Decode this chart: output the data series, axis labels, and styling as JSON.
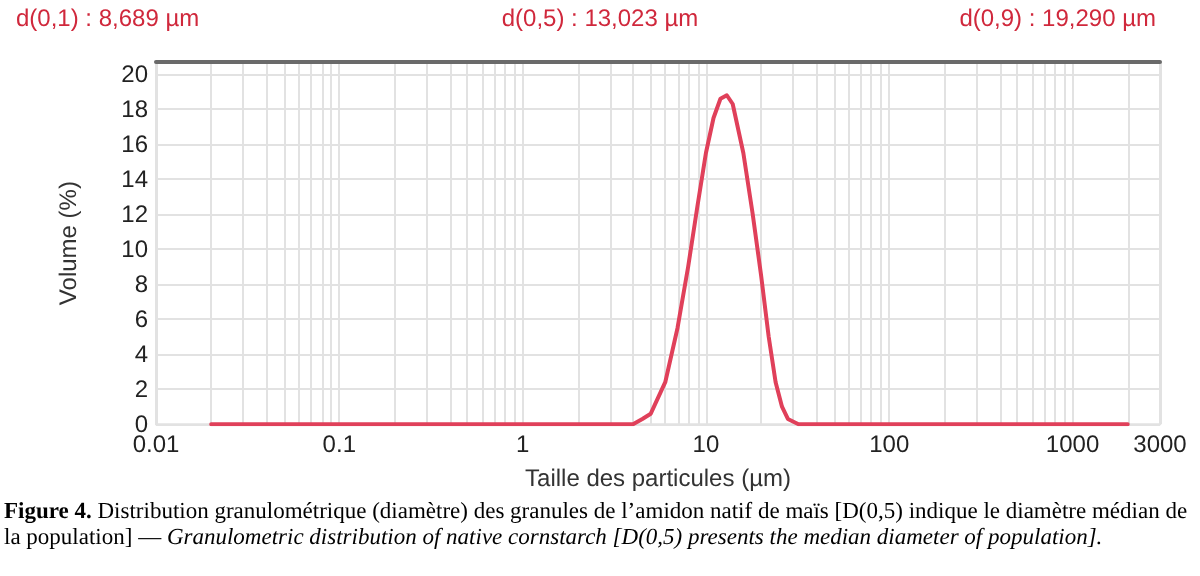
{
  "chart_data": {
    "type": "line",
    "xlabel": "Taille des particules (µm)",
    "ylabel": "Volume (%)",
    "log": "x",
    "xlim": [
      0.01,
      3000
    ],
    "ylim": [
      0,
      20.7
    ],
    "xticks": [
      0.01,
      {
        "value": 0.02,
        "label": null
      },
      {
        "value": 0.03,
        "label": null
      },
      {
        "value": 0.04,
        "label": null
      },
      {
        "value": 0.05,
        "label": null
      },
      {
        "value": 0.06,
        "label": null
      },
      {
        "value": 0.07,
        "label": null
      },
      {
        "value": 0.08,
        "label": null
      },
      {
        "value": 0.09,
        "label": null
      },
      0.1,
      {
        "value": 0.2,
        "label": null
      },
      {
        "value": 0.3,
        "label": null
      },
      {
        "value": 0.4,
        "label": null
      },
      {
        "value": 0.5,
        "label": null
      },
      {
        "value": 0.6,
        "label": null
      },
      {
        "value": 0.7,
        "label": null
      },
      {
        "value": 0.8,
        "label": null
      },
      {
        "value": 0.9,
        "label": null
      },
      1,
      {
        "value": 2,
        "label": null
      },
      {
        "value": 3,
        "label": null
      },
      {
        "value": 4,
        "label": null
      },
      {
        "value": 5,
        "label": null
      },
      {
        "value": 6,
        "label": null
      },
      {
        "value": 7,
        "label": null
      },
      {
        "value": 8,
        "label": null
      },
      {
        "value": 9,
        "label": null
      },
      10,
      {
        "value": 20,
        "label": null
      },
      {
        "value": 30,
        "label": null
      },
      {
        "value": 40,
        "label": null
      },
      {
        "value": 50,
        "label": null
      },
      {
        "value": 60,
        "label": null
      },
      {
        "value": 70,
        "label": null
      },
      {
        "value": 80,
        "label": null
      },
      {
        "value": 90,
        "label": null
      },
      100,
      {
        "value": 200,
        "label": null
      },
      {
        "value": 300,
        "label": null
      },
      {
        "value": 400,
        "label": null
      },
      {
        "value": 500,
        "label": null
      },
      {
        "value": 600,
        "label": null
      },
      {
        "value": 700,
        "label": null
      },
      {
        "value": 800,
        "label": null
      },
      {
        "value": 900,
        "label": null
      },
      1000,
      {
        "value": 2000,
        "label": null
      },
      3000
    ],
    "yticks": [
      0,
      2,
      4,
      6,
      8,
      10,
      12,
      14,
      16,
      18,
      20
    ],
    "grid": true,
    "marker": "none",
    "line_style": "solid",
    "series": [
      {
        "color": "#e0405a",
        "x": [
          0.02,
          1,
          4,
          4.5,
          5,
          6,
          7,
          8,
          9,
          10,
          11,
          12,
          13,
          14,
          16,
          18,
          20,
          22,
          24,
          26,
          28,
          32,
          100,
          2000
        ],
        "values": [
          0,
          0,
          0,
          0.3,
          0.6,
          2.4,
          5.5,
          9,
          12.5,
          15.5,
          17.5,
          18.6,
          18.8,
          18.3,
          15.5,
          12,
          8.5,
          5,
          2.4,
          1,
          0.3,
          0,
          0,
          0
        ]
      }
    ],
    "annotations": [
      "d(0,1) : 8,689 µm",
      "d(0,5) : 13,023 µm",
      "d(0,9) : 19,290 µm",
      "Figure 4.",
      "Distribution granulométrique (diamètre) des granules de l’amidon natif de maïs [D(0,5) indique le diamètre médian de la population] — ",
      "Granulometric distribution of native cornstarch [D(0,5) presents the median diameter of population]."
    ]
  }
}
